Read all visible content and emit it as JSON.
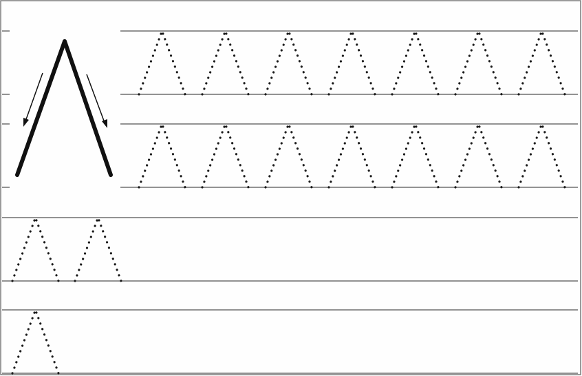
{
  "worksheet": {
    "colors": {
      "paper": "#fefefe",
      "rule": "#6e6e6e",
      "border": "#7a7a7a",
      "stroke": "#111111",
      "dots": "#1a1a1a"
    },
    "model_letter": {
      "shape": "inverted-v",
      "arrows": [
        "down-left",
        "down-right"
      ]
    },
    "rows": [
      {
        "trace_count": 7
      },
      {
        "trace_count": 7
      },
      {
        "trace_count": 2
      },
      {
        "trace_count": 1
      }
    ]
  }
}
